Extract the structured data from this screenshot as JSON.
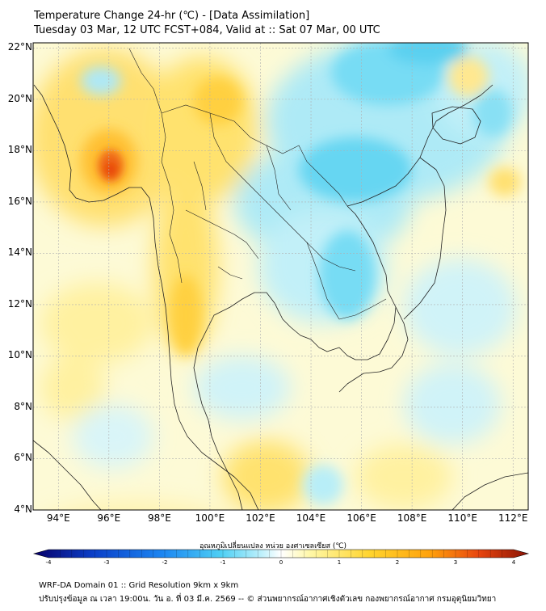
{
  "title_line1": "Temperature Change 24-hr (℃) - [Data Assimilation]",
  "title_line2": "Tuesday 03 Mar, 12 UTC FCST+084, Valid at :: Sat 07 Mar, 00 UTC",
  "map": {
    "lat_labels": [
      {
        "value": 22,
        "text": "22°N"
      },
      {
        "value": 20,
        "text": "20°N"
      },
      {
        "value": 18,
        "text": "18°N"
      },
      {
        "value": 16,
        "text": "16°N"
      },
      {
        "value": 14,
        "text": "14°N"
      },
      {
        "value": 12,
        "text": "12°N"
      },
      {
        "value": 10,
        "text": "10°N"
      },
      {
        "value": 8,
        "text": "8°N"
      },
      {
        "value": 6,
        "text": "6°N"
      },
      {
        "value": 4,
        "text": "4°N"
      }
    ],
    "lon_labels": [
      {
        "value": 94,
        "text": "94°E"
      },
      {
        "value": 96,
        "text": "96°E"
      },
      {
        "value": 98,
        "text": "98°E"
      },
      {
        "value": 100,
        "text": "100°E"
      },
      {
        "value": 102,
        "text": "102°E"
      },
      {
        "value": 104,
        "text": "104°E"
      },
      {
        "value": 106,
        "text": "106°E"
      },
      {
        "value": 108,
        "text": "108°E"
      },
      {
        "value": 110,
        "text": "110°E"
      },
      {
        "value": 112,
        "text": "112°E"
      }
    ],
    "lat_range": [
      4,
      22.2
    ],
    "lon_range": [
      93,
      112.6
    ]
  },
  "colorbar": {
    "title": "อุณหภูมิเปลี่ยนแปลง หน่วย องศาเซลเซียส (℃)",
    "min": -4,
    "max": 4,
    "ticks": [
      "-4",
      "-3",
      "-2",
      "-1",
      "0",
      "1",
      "2",
      "3",
      "4"
    ],
    "colors": [
      "#08006a",
      "#0b3fc8",
      "#1c86f2",
      "#4fd0f4",
      "#bdf0fb",
      "#ffffff",
      "#fff7a6",
      "#ffd42e",
      "#ffa20c",
      "#e8450e",
      "#8a1406"
    ]
  },
  "footer_line1": "WRF-DA Domain 01 :: Grid Resolution 9km x 9km",
  "footer_line2": "ปรับปรุงข้อมูล ณ เวลา 19:00น. วัน อ. ที่ 03 มี.ค. 2569 -- © ส่วนพยากรณ์อากาศเชิงตัวเลข กองพยากรณ์อากาศ กรมอุตุนิยมวิทยา"
}
